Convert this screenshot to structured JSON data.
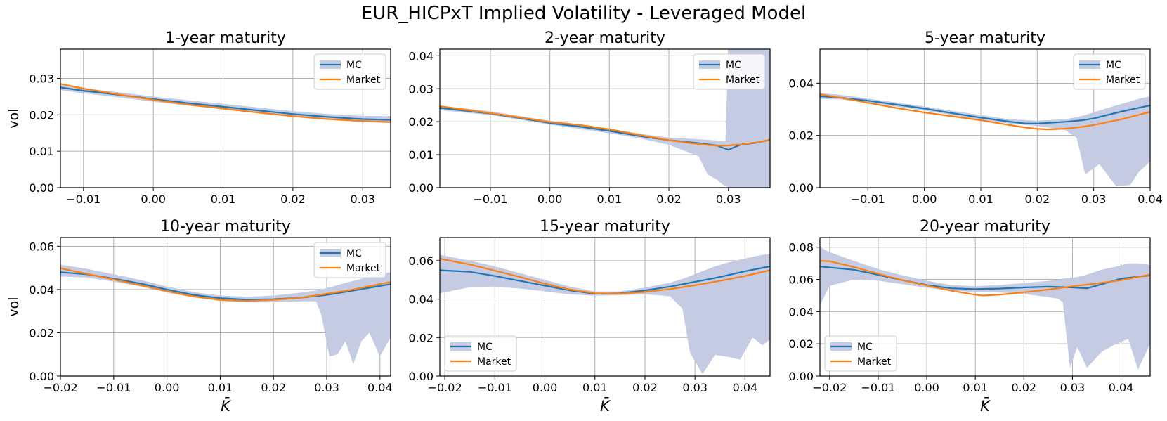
{
  "figure": {
    "title": "EUR_HICPxT Implied Volatility - Leveraged Model"
  },
  "colors": {
    "mc": "#1f77b4",
    "market": "#ff7f0e",
    "band": "#c5cbe3",
    "grid": "#b0b0b0"
  },
  "chart_data": [
    {
      "type": "line",
      "title": "1-year maturity",
      "xlabel": "",
      "ylabel": "vol",
      "xlim": [
        -0.0133,
        0.034
      ],
      "ylim": [
        0,
        0.038
      ],
      "xticks": [
        -0.01,
        0.0,
        0.01,
        0.02,
        0.03
      ],
      "xtick_labels": [
        "−0.01",
        "0.00",
        "0.01",
        "0.02",
        "0.03"
      ],
      "yticks": [
        0,
        0.01,
        0.02,
        0.03
      ],
      "ytick_labels": [
        "0.00",
        "0.01",
        "0.02",
        "0.03"
      ],
      "legend": {
        "position": "upper right",
        "entries": [
          "MC",
          "Market"
        ]
      },
      "grid": true,
      "series": [
        {
          "name": "MC",
          "x": [
            -0.0133,
            -0.01,
            -0.005,
            0.0,
            0.005,
            0.01,
            0.015,
            0.02,
            0.025,
            0.03,
            0.034
          ],
          "values": [
            0.0275,
            0.0266,
            0.0255,
            0.0243,
            0.0232,
            0.0222,
            0.0212,
            0.0202,
            0.0194,
            0.0188,
            0.0186
          ]
        },
        {
          "name": "Market",
          "x": [
            -0.0133,
            -0.01,
            -0.005,
            0.0,
            0.005,
            0.01,
            0.015,
            0.02,
            0.025,
            0.03,
            0.034
          ],
          "values": [
            0.0285,
            0.0272,
            0.0256,
            0.0241,
            0.0228,
            0.0217,
            0.0206,
            0.0196,
            0.0188,
            0.0183,
            0.018
          ]
        }
      ],
      "band": {
        "x": [
          -0.0133,
          -0.01,
          -0.005,
          0.0,
          0.005,
          0.01,
          0.015,
          0.02,
          0.025,
          0.03,
          0.034
        ],
        "lower": [
          0.0268,
          0.0259,
          0.0248,
          0.0236,
          0.0225,
          0.0215,
          0.0205,
          0.0195,
          0.0186,
          0.018,
          0.0177
        ],
        "upper": [
          0.0282,
          0.0273,
          0.0262,
          0.025,
          0.024,
          0.023,
          0.022,
          0.021,
          0.0202,
          0.0197,
          0.0196
        ]
      }
    },
    {
      "type": "line",
      "title": "2-year maturity",
      "xlabel": "",
      "ylabel": "",
      "xlim": [
        -0.0185,
        0.037
      ],
      "ylim": [
        0,
        0.042
      ],
      "xticks": [
        -0.01,
        0.0,
        0.01,
        0.02,
        0.03
      ],
      "xtick_labels": [
        "−0.01",
        "0.00",
        "0.01",
        "0.02",
        "0.03"
      ],
      "yticks": [
        0,
        0.01,
        0.02,
        0.03,
        0.04
      ],
      "ytick_labels": [
        "0.00",
        "0.01",
        "0.02",
        "0.03",
        "0.04"
      ],
      "legend": {
        "position": "upper right",
        "entries": [
          "MC",
          "Market"
        ]
      },
      "grid": true,
      "series": [
        {
          "name": "MC",
          "x": [
            -0.0185,
            -0.01,
            -0.005,
            0.0,
            0.005,
            0.01,
            0.015,
            0.02,
            0.025,
            0.028,
            0.03,
            0.032,
            0.035,
            0.037
          ],
          "values": [
            0.0242,
            0.0225,
            0.0211,
            0.0196,
            0.0185,
            0.0172,
            0.0157,
            0.0144,
            0.0135,
            0.0128,
            0.0115,
            0.013,
            0.0137,
            0.0145
          ]
        },
        {
          "name": "Market",
          "x": [
            -0.0185,
            -0.01,
            -0.005,
            0.0,
            0.005,
            0.01,
            0.015,
            0.02,
            0.025,
            0.028,
            0.03,
            0.032,
            0.035,
            0.037
          ],
          "values": [
            0.0247,
            0.0226,
            0.0213,
            0.0199,
            0.019,
            0.0177,
            0.016,
            0.0144,
            0.0132,
            0.0127,
            0.0128,
            0.0131,
            0.0138,
            0.0144
          ]
        }
      ],
      "band": {
        "x": [
          -0.0185,
          -0.01,
          -0.005,
          0.0,
          0.005,
          0.01,
          0.015,
          0.02,
          0.025,
          0.0265,
          0.028,
          0.029,
          0.0295,
          0.03,
          0.031,
          0.033,
          0.035,
          0.037
        ],
        "lower": [
          0.0235,
          0.022,
          0.0206,
          0.0191,
          0.0178,
          0.0165,
          0.015,
          0.013,
          0.0095,
          0.004,
          0.0025,
          0.001,
          0.0005,
          0.0,
          0.0,
          0.0,
          0.0,
          0.0
        ],
        "upper": [
          0.0249,
          0.0232,
          0.0217,
          0.0203,
          0.0192,
          0.0179,
          0.0164,
          0.0152,
          0.0147,
          0.0145,
          0.0143,
          0.014,
          0.014,
          0.042,
          0.042,
          0.042,
          0.042,
          0.042
        ]
      }
    },
    {
      "type": "line",
      "title": "5-year maturity",
      "xlabel": "",
      "ylabel": "",
      "xlim": [
        -0.0185,
        0.04
      ],
      "ylim": [
        0,
        0.053
      ],
      "xticks": [
        -0.01,
        0.0,
        0.01,
        0.02,
        0.03,
        0.04
      ],
      "xtick_labels": [
        "−0.01",
        "0.00",
        "0.01",
        "0.02",
        "0.03",
        "0.04"
      ],
      "yticks": [
        0,
        0.02,
        0.04
      ],
      "ytick_labels": [
        "0.00",
        "0.02",
        "0.04"
      ],
      "legend": {
        "position": "upper right",
        "entries": [
          "MC",
          "Market"
        ]
      },
      "grid": true,
      "series": [
        {
          "name": "MC",
          "x": [
            -0.0185,
            -0.015,
            -0.01,
            -0.005,
            0.0,
            0.005,
            0.01,
            0.015,
            0.018,
            0.02,
            0.022,
            0.025,
            0.028,
            0.03,
            0.035,
            0.04
          ],
          "values": [
            0.035,
            0.0345,
            0.0333,
            0.0318,
            0.0303,
            0.0285,
            0.0268,
            0.0253,
            0.0245,
            0.0245,
            0.0248,
            0.0252,
            0.0258,
            0.0265,
            0.0292,
            0.0315
          ]
        },
        {
          "name": "Market",
          "x": [
            -0.0185,
            -0.015,
            -0.01,
            -0.005,
            0.0,
            0.005,
            0.01,
            0.015,
            0.018,
            0.02,
            0.022,
            0.025,
            0.028,
            0.03,
            0.035,
            0.04
          ],
          "values": [
            0.0357,
            0.0345,
            0.0325,
            0.0305,
            0.0288,
            0.0273,
            0.0258,
            0.024,
            0.023,
            0.0225,
            0.0223,
            0.0226,
            0.0233,
            0.024,
            0.0262,
            0.029
          ]
        }
      ],
      "band": {
        "x": [
          -0.0185,
          -0.015,
          -0.01,
          -0.005,
          0.0,
          0.005,
          0.01,
          0.015,
          0.02,
          0.025,
          0.027,
          0.0285,
          0.031,
          0.034,
          0.0365,
          0.038,
          0.04
        ],
        "lower": [
          0.034,
          0.0338,
          0.0326,
          0.031,
          0.0295,
          0.0278,
          0.026,
          0.0245,
          0.0236,
          0.022,
          0.019,
          0.005,
          0.009,
          0.0005,
          0.001,
          0.006,
          0.01
        ],
        "upper": [
          0.0362,
          0.0356,
          0.0341,
          0.0326,
          0.0311,
          0.0294,
          0.0278,
          0.0262,
          0.0256,
          0.0262,
          0.027,
          0.0278,
          0.0295,
          0.0315,
          0.033,
          0.034,
          0.035
        ]
      }
    },
    {
      "type": "line",
      "title": "10-year maturity",
      "xlabel": "K̄",
      "ylabel": "vol",
      "xlim": [
        -0.02,
        0.042
      ],
      "ylim": [
        0,
        0.064
      ],
      "xticks": [
        -0.02,
        -0.01,
        0.0,
        0.01,
        0.02,
        0.03,
        0.04
      ],
      "xtick_labels": [
        "−0.02",
        "−0.01",
        "0.00",
        "0.01",
        "0.02",
        "0.03",
        "0.04"
      ],
      "yticks": [
        0,
        0.02,
        0.04,
        0.06
      ],
      "ytick_labels": [
        "0.00",
        "0.02",
        "0.04",
        "0.06"
      ],
      "legend": {
        "position": "upper right",
        "entries": [
          "MC",
          "Market"
        ]
      },
      "grid": true,
      "series": [
        {
          "name": "MC",
          "x": [
            -0.02,
            -0.015,
            -0.01,
            -0.005,
            0.0,
            0.005,
            0.01,
            0.015,
            0.02,
            0.025,
            0.03,
            0.035,
            0.042
          ],
          "values": [
            0.048,
            0.047,
            0.045,
            0.0428,
            0.04,
            0.0375,
            0.036,
            0.0353,
            0.0355,
            0.0362,
            0.0375,
            0.0395,
            0.0425
          ]
        },
        {
          "name": "Market",
          "x": [
            -0.02,
            -0.015,
            -0.01,
            -0.005,
            0.0,
            0.005,
            0.01,
            0.015,
            0.02,
            0.025,
            0.03,
            0.035,
            0.042
          ],
          "values": [
            0.0498,
            0.0472,
            0.0446,
            0.042,
            0.0392,
            0.0368,
            0.0352,
            0.0347,
            0.0352,
            0.0362,
            0.038,
            0.04,
            0.0435
          ]
        }
      ],
      "band": {
        "x": [
          -0.02,
          -0.015,
          -0.01,
          -0.005,
          0.0,
          0.005,
          0.01,
          0.015,
          0.02,
          0.025,
          0.028,
          0.029,
          0.0305,
          0.032,
          0.0335,
          0.035,
          0.0365,
          0.038,
          0.04,
          0.042
        ],
        "lower": [
          0.046,
          0.0455,
          0.0436,
          0.0414,
          0.0386,
          0.0363,
          0.0347,
          0.034,
          0.034,
          0.0345,
          0.0345,
          0.028,
          0.009,
          0.01,
          0.016,
          0.0055,
          0.016,
          0.02,
          0.009,
          0.018
        ],
        "upper": [
          0.0515,
          0.0495,
          0.047,
          0.0444,
          0.0414,
          0.0388,
          0.0372,
          0.0366,
          0.0372,
          0.0385,
          0.0395,
          0.04,
          0.041,
          0.042,
          0.043,
          0.044,
          0.045,
          0.046,
          0.047,
          0.048
        ]
      }
    },
    {
      "type": "line",
      "title": "15-year maturity",
      "xlabel": "K̄",
      "ylabel": "",
      "xlim": [
        -0.021,
        0.045
      ],
      "ylim": [
        0,
        0.072
      ],
      "xticks": [
        -0.02,
        -0.01,
        0.0,
        0.01,
        0.02,
        0.03,
        0.04
      ],
      "xtick_labels": [
        "−0.02",
        "−0.01",
        "0.00",
        "0.01",
        "0.02",
        "0.03",
        "0.04"
      ],
      "yticks": [
        0,
        0.02,
        0.04,
        0.06
      ],
      "ytick_labels": [
        "0.00",
        "0.02",
        "0.04",
        "0.06"
      ],
      "legend": {
        "position": "lower left",
        "entries": [
          "MC",
          "Market"
        ]
      },
      "grid": true,
      "series": [
        {
          "name": "MC",
          "x": [
            -0.021,
            -0.015,
            -0.01,
            -0.005,
            0.0,
            0.005,
            0.01,
            0.015,
            0.02,
            0.025,
            0.03,
            0.035,
            0.04,
            0.045
          ],
          "values": [
            0.055,
            0.0542,
            0.052,
            0.0495,
            0.047,
            0.0445,
            0.0428,
            0.043,
            0.0445,
            0.0465,
            0.049,
            0.0515,
            0.0545,
            0.057
          ]
        },
        {
          "name": "Market",
          "x": [
            -0.021,
            -0.015,
            -0.01,
            -0.005,
            0.0,
            0.005,
            0.01,
            0.015,
            0.02,
            0.025,
            0.03,
            0.035,
            0.04,
            0.045
          ],
          "values": [
            0.061,
            0.058,
            0.0548,
            0.0515,
            0.048,
            0.045,
            0.043,
            0.0428,
            0.0437,
            0.0452,
            0.0472,
            0.0495,
            0.052,
            0.055
          ]
        }
      ],
      "band": {
        "x": [
          -0.021,
          -0.015,
          -0.01,
          -0.005,
          0.0,
          0.005,
          0.01,
          0.015,
          0.02,
          0.025,
          0.0275,
          0.029,
          0.0315,
          0.034,
          0.0365,
          0.039,
          0.0415,
          0.0435,
          0.045
        ],
        "lower": [
          0.043,
          0.0462,
          0.0465,
          0.0455,
          0.044,
          0.0425,
          0.0418,
          0.042,
          0.0425,
          0.0415,
          0.035,
          0.012,
          0.001,
          0.011,
          0.01,
          0.0085,
          0.02,
          0.016,
          0.019
        ],
        "upper": [
          0.063,
          0.06,
          0.057,
          0.0535,
          0.05,
          0.0465,
          0.044,
          0.044,
          0.046,
          0.0485,
          0.0505,
          0.052,
          0.0545,
          0.057,
          0.059,
          0.0605,
          0.062,
          0.063,
          0.0635
        ]
      }
    },
    {
      "type": "line",
      "title": "20-year maturity",
      "xlabel": "K̄",
      "ylabel": "",
      "xlim": [
        -0.022,
        0.046
      ],
      "ylim": [
        0,
        0.086
      ],
      "xticks": [
        -0.02,
        -0.01,
        0.0,
        0.01,
        0.02,
        0.03,
        0.04
      ],
      "xtick_labels": [
        "−0.02",
        "−0.01",
        "0.00",
        "0.01",
        "0.02",
        "0.03",
        "0.04"
      ],
      "yticks": [
        0,
        0.02,
        0.04,
        0.06,
        0.08
      ],
      "ytick_labels": [
        "0.00",
        "0.02",
        "0.04",
        "0.06",
        "0.08"
      ],
      "legend": {
        "position": "lower left",
        "entries": [
          "MC",
          "Market"
        ]
      },
      "grid": true,
      "series": [
        {
          "name": "MC",
          "x": [
            -0.022,
            -0.015,
            -0.01,
            -0.005,
            0.0,
            0.005,
            0.01,
            0.015,
            0.02,
            0.025,
            0.03,
            0.033,
            0.036,
            0.04,
            0.046
          ],
          "values": [
            0.068,
            0.066,
            0.0628,
            0.0595,
            0.0565,
            0.0545,
            0.054,
            0.0543,
            0.055,
            0.0555,
            0.055,
            0.0545,
            0.057,
            0.0605,
            0.0625
          ]
        },
        {
          "name": "Market",
          "x": [
            -0.022,
            -0.02,
            -0.015,
            -0.01,
            -0.005,
            0.0,
            0.005,
            0.01,
            0.0115,
            0.015,
            0.02,
            0.025,
            0.03,
            0.035,
            0.04,
            0.046
          ],
          "values": [
            0.0715,
            0.0713,
            0.0677,
            0.0635,
            0.0595,
            0.0562,
            0.053,
            0.0505,
            0.05,
            0.0505,
            0.052,
            0.0537,
            0.0557,
            0.0575,
            0.0595,
            0.063
          ]
        }
      ],
      "band": {
        "x": [
          -0.022,
          -0.02,
          -0.015,
          -0.01,
          -0.005,
          0.0,
          0.005,
          0.01,
          0.015,
          0.02,
          0.025,
          0.027,
          0.028,
          0.0295,
          0.031,
          0.033,
          0.036,
          0.039,
          0.0415,
          0.0435,
          0.046
        ],
        "lower": [
          0.044,
          0.056,
          0.06,
          0.0592,
          0.057,
          0.0548,
          0.053,
          0.0522,
          0.0518,
          0.051,
          0.049,
          0.048,
          0.046,
          0.005,
          0.018,
          0.005,
          0.015,
          0.02,
          0.023,
          0.004,
          0.02
        ],
        "upper": [
          0.08,
          0.077,
          0.0715,
          0.0665,
          0.0625,
          0.0592,
          0.0565,
          0.0558,
          0.0565,
          0.0578,
          0.059,
          0.06,
          0.0605,
          0.061,
          0.0615,
          0.063,
          0.066,
          0.068,
          0.07,
          0.07,
          0.069
        ]
      }
    }
  ]
}
